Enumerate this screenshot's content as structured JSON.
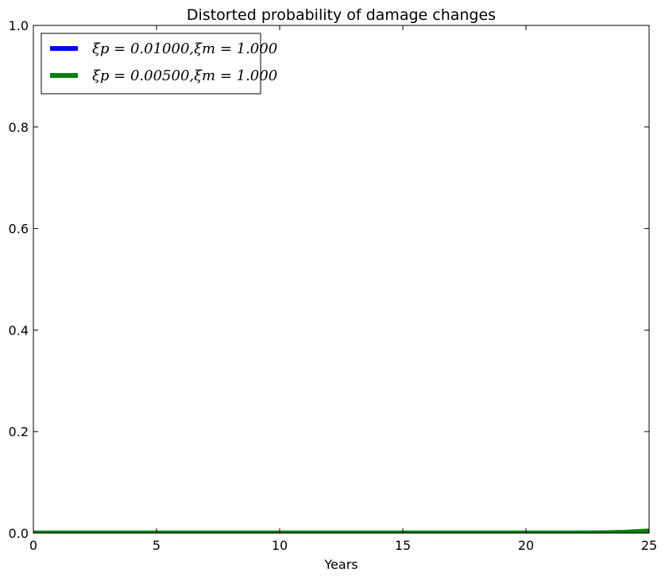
{
  "chart_data": {
    "type": "line",
    "title": "Distorted probability of damage changes",
    "xlabel": "Years",
    "ylabel": "",
    "xlim": [
      0,
      25
    ],
    "ylim": [
      0,
      1.0
    ],
    "xticks": [
      0,
      5,
      10,
      15,
      20,
      25
    ],
    "xtick_labels": [
      "0",
      "5",
      "10",
      "15",
      "20",
      "25"
    ],
    "yticks": [
      0.0,
      0.2,
      0.4,
      0.6,
      0.8,
      1.0
    ],
    "ytick_labels": [
      "0.0",
      "0.2",
      "0.4",
      "0.6",
      "0.8",
      "1.0"
    ],
    "grid": false,
    "legend_position": "top-left",
    "series": [
      {
        "name": "ξp = 0.01000,ξm = 1.000",
        "color": "#0000ff",
        "x": [
          0,
          5,
          10,
          15,
          20,
          22,
          23,
          24,
          25
        ],
        "y": [
          0.001,
          0.001,
          0.001,
          0.001,
          0.001,
          0.001,
          0.0012,
          0.002,
          0.004
        ]
      },
      {
        "name": "ξp = 0.00500,ξm = 1.000",
        "color": "#008000",
        "x": [
          0,
          5,
          10,
          15,
          20,
          22,
          23,
          24,
          25
        ],
        "y": [
          0.001,
          0.001,
          0.001,
          0.001,
          0.001,
          0.001,
          0.0013,
          0.0025,
          0.005
        ]
      }
    ]
  }
}
